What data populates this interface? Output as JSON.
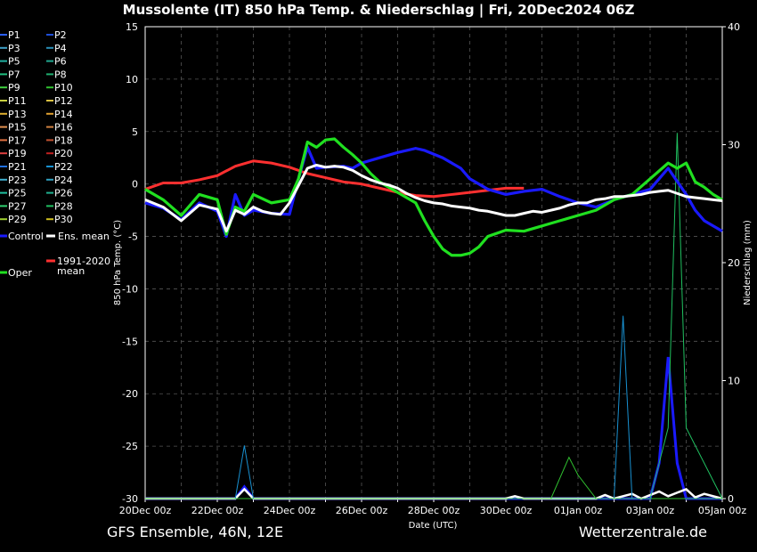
{
  "title": "Mussolente  (IT)  850 hPa Temp. & Niederschlag | Fri, 20Dec2024 06Z",
  "footer_left": "GFS Ensemble, 46N, 12E",
  "footer_right": "Wetterzentrale.de",
  "chart_data": {
    "type": "line",
    "xlabel": "Date (UTC)",
    "ylabel_left": "850 hPa Temp. (°C)",
    "ylabel_right": "Niederschlag (mm)",
    "ylim_left": [
      -30,
      15
    ],
    "ylim_right": [
      0,
      40
    ],
    "xlim_hours": [
      0,
      384
    ],
    "yticks_left": [
      15,
      10,
      5,
      0,
      -5,
      -10,
      -15,
      -20,
      -25,
      -30
    ],
    "yticks_right": [
      40,
      30,
      20,
      10,
      0
    ],
    "xticks": [
      "20Dec 00z",
      "22Dec 00z",
      "24Dec 00z",
      "26Dec 00z",
      "28Dec 00z",
      "30Dec 00z",
      "01Jan 00z",
      "03Jan 00z",
      "05Jan 00z"
    ],
    "grid": true,
    "legend": {
      "position": "left",
      "items": [
        {
          "label": "P1",
          "color": "#2a5fff"
        },
        {
          "label": "P2",
          "color": "#1f4fd8"
        },
        {
          "label": "P3",
          "color": "#3fa0c8"
        },
        {
          "label": "P4",
          "color": "#2a90b8"
        },
        {
          "label": "P5",
          "color": "#20b0a0"
        },
        {
          "label": "P6",
          "color": "#20a890"
        },
        {
          "label": "P7",
          "color": "#20c080"
        },
        {
          "label": "P8",
          "color": "#20b070"
        },
        {
          "label": "P9",
          "color": "#40d040"
        },
        {
          "label": "P10",
          "color": "#30c030"
        },
        {
          "label": "P11",
          "color": "#c8d040"
        },
        {
          "label": "P12",
          "color": "#d8c040"
        },
        {
          "label": "P13",
          "color": "#e0b030"
        },
        {
          "label": "P14",
          "color": "#e0a030"
        },
        {
          "label": "P15",
          "color": "#e09050"
        },
        {
          "label": "P16",
          "color": "#d08040"
        },
        {
          "label": "P17",
          "color": "#e07040"
        },
        {
          "label": "P18",
          "color": "#c05030"
        },
        {
          "label": "P19",
          "color": "#e04040"
        },
        {
          "label": "P20",
          "color": "#c02020"
        },
        {
          "label": "P21",
          "color": "#2070e0"
        },
        {
          "label": "P22",
          "color": "#1890d0"
        },
        {
          "label": "P23",
          "color": "#40b0d0"
        },
        {
          "label": "P24",
          "color": "#30a0c0"
        },
        {
          "label": "P25",
          "color": "#20c0a0"
        },
        {
          "label": "P26",
          "color": "#20b090"
        },
        {
          "label": "P27",
          "color": "#30d070"
        },
        {
          "label": "P28",
          "color": "#20c060"
        },
        {
          "label": "P29",
          "color": "#a0d030"
        },
        {
          "label": "P30",
          "color": "#d0c020"
        },
        {
          "label": "Control",
          "color": "#1a1aff"
        },
        {
          "label": "Ens. mean",
          "color": "#ffffff"
        },
        {
          "label": "1991-2020 mean",
          "color": "#ff3030"
        },
        {
          "label": "Oper",
          "color": "#20e020"
        }
      ]
    },
    "series": [
      {
        "name": "Ens. mean",
        "color": "#ffffff",
        "x": [
          0,
          12,
          24,
          36,
          48,
          54,
          60,
          66,
          72,
          78,
          84,
          90,
          96,
          108,
          114,
          120,
          126,
          132,
          138,
          144,
          150,
          156,
          162,
          168,
          174,
          180,
          186,
          192,
          198,
          204,
          210,
          216,
          222,
          228,
          234,
          240,
          246,
          252,
          258,
          264,
          270,
          276,
          282,
          288,
          294,
          300,
          306,
          312,
          318,
          324,
          330,
          336,
          342,
          348,
          354,
          360,
          366,
          372,
          378,
          384
        ],
        "y": [
          -1.5,
          -2.2,
          -3.5,
          -2.0,
          -2.4,
          -4.5,
          -2.5,
          -2.9,
          -2.2,
          -2.6,
          -2.8,
          -2.9,
          -1.8,
          1.5,
          1.8,
          1.6,
          1.7,
          1.6,
          1.3,
          0.8,
          0.4,
          0.1,
          -0.1,
          -0.4,
          -0.9,
          -1.3,
          -1.6,
          -1.8,
          -1.9,
          -2.1,
          -2.2,
          -2.3,
          -2.5,
          -2.6,
          -2.8,
          -3.0,
          -3.0,
          -2.8,
          -2.6,
          -2.7,
          -2.5,
          -2.3,
          -2.0,
          -1.8,
          -1.8,
          -1.5,
          -1.4,
          -1.2,
          -1.2,
          -1.1,
          -1.0,
          -0.8,
          -0.7,
          -0.6,
          -0.9,
          -1.2,
          -1.3,
          -1.4,
          -1.5,
          -1.6
        ]
      },
      {
        "name": "Control",
        "color": "#1a1aff",
        "x": [
          0,
          12,
          24,
          36,
          48,
          54,
          60,
          66,
          72,
          84,
          96,
          102,
          108,
          114,
          120,
          132,
          138,
          144,
          156,
          168,
          180,
          186,
          198,
          210,
          216,
          228,
          240,
          252,
          264,
          276,
          288,
          300,
          312,
          324,
          336,
          348,
          360,
          366,
          372,
          384
        ],
        "y": [
          -1.8,
          -2.3,
          -3.4,
          -1.8,
          -2.6,
          -5.0,
          -1.0,
          -3.0,
          -2.5,
          -2.8,
          -2.9,
          0.5,
          3.5,
          1.5,
          1.6,
          1.7,
          1.5,
          2.0,
          2.5,
          3.0,
          3.4,
          3.2,
          2.5,
          1.5,
          0.5,
          -0.5,
          -1.0,
          -0.7,
          -0.5,
          -1.2,
          -1.8,
          -2.2,
          -1.5,
          -1.0,
          -0.5,
          1.5,
          -1.0,
          -2.5,
          -3.5,
          -4.5
        ]
      },
      {
        "name": "Oper",
        "color": "#20e020",
        "x": [
          0,
          12,
          24,
          36,
          48,
          54,
          60,
          66,
          72,
          84,
          96,
          102,
          108,
          114,
          120,
          126,
          132,
          138,
          144,
          150,
          156,
          162,
          168,
          180,
          186,
          192,
          198,
          204,
          210,
          216,
          222,
          228,
          240,
          252,
          264,
          276,
          288,
          300,
          312,
          324,
          336,
          348,
          354,
          360,
          366,
          372,
          378,
          384
        ],
        "y": [
          -0.5,
          -1.5,
          -3.0,
          -1.0,
          -1.5,
          -4.8,
          -2.2,
          -2.6,
          -1.0,
          -1.8,
          -1.5,
          0.5,
          4.0,
          3.5,
          4.2,
          4.3,
          3.5,
          2.8,
          2.0,
          1.0,
          0.2,
          -0.3,
          -0.8,
          -1.8,
          -3.5,
          -5.0,
          -6.2,
          -6.8,
          -6.8,
          -6.6,
          -6.0,
          -5.0,
          -4.4,
          -4.5,
          -4.0,
          -3.5,
          -3.0,
          -2.5,
          -1.5,
          -1.0,
          0.5,
          2.0,
          1.5,
          2.0,
          0.2,
          -0.3,
          -1.0,
          -1.5
        ]
      },
      {
        "name": "1991-2020 mean",
        "color": "#ff3030",
        "x": [
          0,
          12,
          24,
          36,
          48,
          60,
          72,
          84,
          96,
          108,
          120,
          132,
          144,
          156,
          168,
          180,
          192,
          204,
          216,
          228,
          240,
          252
        ],
        "y": [
          -0.5,
          0.1,
          0.1,
          0.4,
          0.8,
          1.7,
          2.2,
          2.0,
          1.6,
          1.0,
          0.6,
          0.2,
          0.0,
          -0.4,
          -0.8,
          -1.1,
          -1.2,
          -1.0,
          -0.8,
          -0.6,
          -0.4,
          -0.4
        ]
      }
    ],
    "precip_series": [
      {
        "name": "Control",
        "color": "#1a1aff",
        "x": [
          0,
          60,
          66,
          72,
          336,
          342,
          348,
          354,
          360,
          384
        ],
        "y": [
          0,
          0,
          1.0,
          0,
          0,
          3,
          12,
          3,
          0,
          0
        ]
      },
      {
        "name": "Ens. mean",
        "color": "#ffffff",
        "x": [
          0,
          60,
          66,
          72,
          240,
          246,
          252,
          300,
          306,
          312,
          324,
          330,
          336,
          342,
          348,
          360,
          366,
          372,
          384
        ],
        "y": [
          0,
          0,
          0.8,
          0,
          0,
          0.2,
          0,
          0,
          0.3,
          0,
          0.4,
          0,
          0.3,
          0.6,
          0.2,
          0.8,
          0.1,
          0.4,
          0
        ]
      },
      {
        "name": "P22",
        "color": "#1890d0",
        "x": [
          0,
          60,
          66,
          72,
          312,
          318,
          324,
          384
        ],
        "y": [
          0,
          0,
          4.5,
          0,
          0,
          15.5,
          0,
          0
        ]
      },
      {
        "name": "P28",
        "color": "#20c060",
        "x": [
          0,
          336,
          348,
          354,
          360,
          384
        ],
        "y": [
          0,
          0,
          6,
          31,
          6,
          0
        ]
      },
      {
        "name": "P10",
        "color": "#30c030",
        "x": [
          0,
          270,
          282,
          288,
          300,
          384
        ],
        "y": [
          0,
          0,
          3.5,
          2,
          0,
          0
        ]
      }
    ]
  }
}
